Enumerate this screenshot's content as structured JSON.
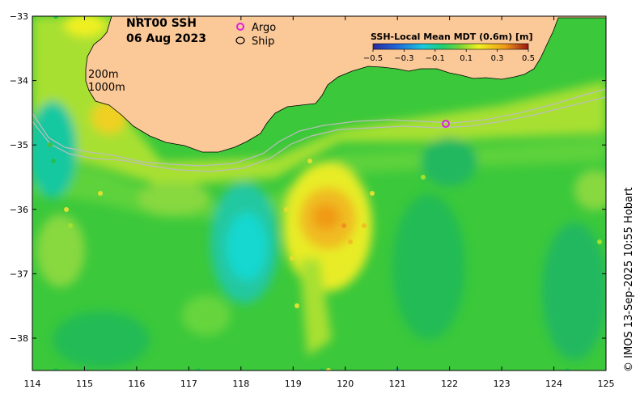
{
  "title": {
    "product": "NRT00 SSH",
    "date": "06 Aug 2023"
  },
  "legend": {
    "argo_label": "Argo",
    "ship_label": "Ship",
    "argo_color": "#e020e0",
    "ship_color": "#000000"
  },
  "isobaths": {
    "shallow_label": "200m",
    "deep_label": "1000m",
    "color": "#bdbdbd"
  },
  "colorbar": {
    "title": "SSH-Local Mean MDT (0.6m) [m]",
    "ticks": [
      "−0.5",
      "−0.3",
      "−0.1",
      "0.1",
      "0.3",
      "0.5"
    ],
    "stops": [
      "#2a2a9e",
      "#1f66d8",
      "#18c8e0",
      "#20d070",
      "#6fd23a",
      "#f0f020",
      "#f09a18",
      "#9a1515"
    ]
  },
  "axes": {
    "x_ticks": [
      "114",
      "115",
      "116",
      "117",
      "118",
      "119",
      "120",
      "121",
      "122",
      "123",
      "124",
      "125"
    ],
    "y_ticks": [
      "−33",
      "−34",
      "−35",
      "−36",
      "−37",
      "−38"
    ]
  },
  "credit": "© IMOS 13-Sep-2025 10:55 Hobart",
  "colors": {
    "land": "#fbc898",
    "ocean_base": "#3bc83b"
  }
}
